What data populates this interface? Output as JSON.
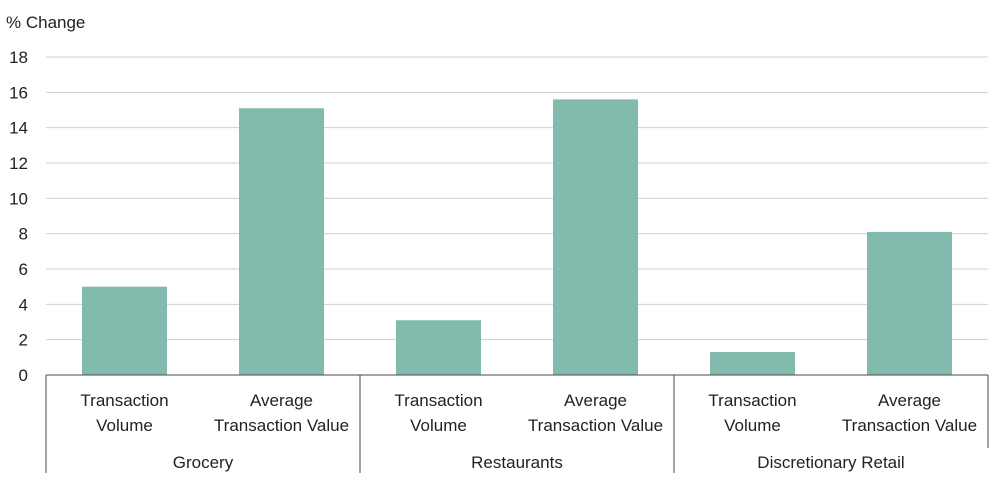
{
  "chart_data": {
    "type": "bar",
    "ylabel": "% Change",
    "ylim": [
      0,
      18
    ],
    "yticks": [
      0,
      2,
      4,
      6,
      8,
      10,
      12,
      14,
      16,
      18
    ],
    "grid": true,
    "bar_color": "#82bbad",
    "groups": [
      {
        "name": "Grocery",
        "categories": [
          {
            "label": [
              "Transaction",
              "Volume"
            ],
            "value": 5.0
          },
          {
            "label": [
              "Average",
              "Transaction Value"
            ],
            "value": 15.1
          }
        ]
      },
      {
        "name": "Restaurants",
        "categories": [
          {
            "label": [
              "Transaction",
              "Volume"
            ],
            "value": 3.1
          },
          {
            "label": [
              "Average",
              "Transaction Value"
            ],
            "value": 15.6
          }
        ]
      },
      {
        "name": "Discretionary Retail",
        "categories": [
          {
            "label": [
              "Transaction",
              "Volume"
            ],
            "value": 1.3
          },
          {
            "label": [
              "Average",
              "Transaction Value"
            ],
            "value": 8.1
          }
        ]
      }
    ]
  }
}
